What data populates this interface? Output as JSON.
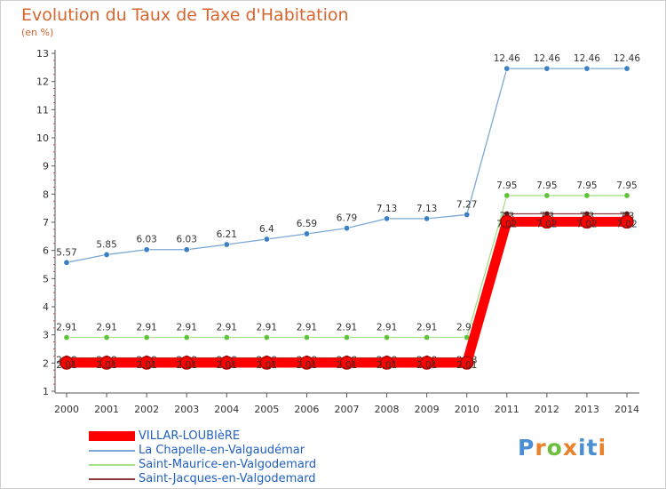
{
  "header": {
    "title": "Evolution du Taux de Taxe d'Habitation",
    "subtitle": "(en %)"
  },
  "logo": {
    "text": "Proxiti",
    "colors": [
      "#4a8fd6",
      "#e8812a",
      "#6cbf3c",
      "#e8812a",
      "#4a8fd6",
      "#4a8fd6",
      "#e8812a"
    ]
  },
  "chart_data": {
    "type": "line",
    "title": "Evolution du Taux de Taxe d'Habitation",
    "subtitle": "(en %)",
    "xlabel": "",
    "ylabel": "(en %)",
    "x": [
      "2000",
      "2001",
      "2002",
      "2003",
      "2004",
      "2005",
      "2006",
      "2007",
      "2008",
      "2009",
      "2010",
      "2011",
      "2012",
      "2013",
      "2014"
    ],
    "ylim": [
      1,
      13
    ],
    "yticks": [
      1,
      2,
      3,
      4,
      5,
      6,
      7,
      8,
      9,
      10,
      11,
      12,
      13
    ],
    "grid": false,
    "legend_position": "bottom-left",
    "series": [
      {
        "name": "VILLAR-LOUBIèRE",
        "color": "#ff0000",
        "values": [
          2.01,
          2.01,
          2.01,
          2.01,
          2.01,
          2.01,
          2.01,
          2.01,
          2.01,
          2.01,
          2.01,
          7.02,
          7.02,
          7.02,
          7.02
        ],
        "labels": [
          "2.01",
          "2.01",
          "2.01",
          "2.01",
          "2.01",
          "2.01",
          "2.01",
          "2.01",
          "2.01",
          "2.01",
          "2.01",
          "7.02",
          "7.02",
          "7.02",
          "7.02"
        ]
      },
      {
        "name": "La Chapelle-en-Valgaudémar",
        "color": "#6a9fd0",
        "values": [
          5.57,
          5.85,
          6.03,
          6.03,
          6.21,
          6.4,
          6.59,
          6.79,
          7.13,
          7.13,
          7.27,
          12.46,
          12.46,
          12.46,
          12.46
        ],
        "labels": [
          "5.57",
          "5.85",
          "6.03",
          "6.03",
          "6.21",
          "6.4",
          "6.59",
          "6.79",
          "7.13",
          "7.13",
          "7.27",
          "12.46",
          "12.46",
          "12.46",
          "12.46"
        ]
      },
      {
        "name": "Saint-Maurice-en-Valgodemard",
        "color": "#99dd77",
        "values": [
          2.91,
          2.91,
          2.91,
          2.91,
          2.91,
          2.91,
          2.91,
          2.91,
          2.91,
          2.91,
          2.91,
          7.95,
          7.95,
          7.95,
          7.95
        ],
        "labels": [
          "2.91",
          "2.91",
          "2.91",
          "2.91",
          "2.91",
          "2.91",
          "2.91",
          "2.91",
          "2.91",
          "2.91",
          "2.91",
          "7.95",
          "7.95",
          "7.95",
          "7.95"
        ]
      },
      {
        "name": "Saint-Jacques-en-Valgodemard",
        "color": "#8b3a3a",
        "values": [
          2.18,
          2.18,
          2.18,
          2.18,
          2.18,
          2.18,
          2.18,
          2.18,
          2.18,
          2.18,
          2.18,
          7.3,
          7.3,
          7.3,
          7.3
        ],
        "labels": [
          "2.18",
          "2.18",
          "2.18",
          "2.18",
          "2.18",
          "2.18",
          "2.18",
          "2.18",
          "2.18",
          "2.18",
          "2.18",
          "7.3",
          "7.3",
          "7.3",
          "7.3"
        ]
      }
    ]
  }
}
